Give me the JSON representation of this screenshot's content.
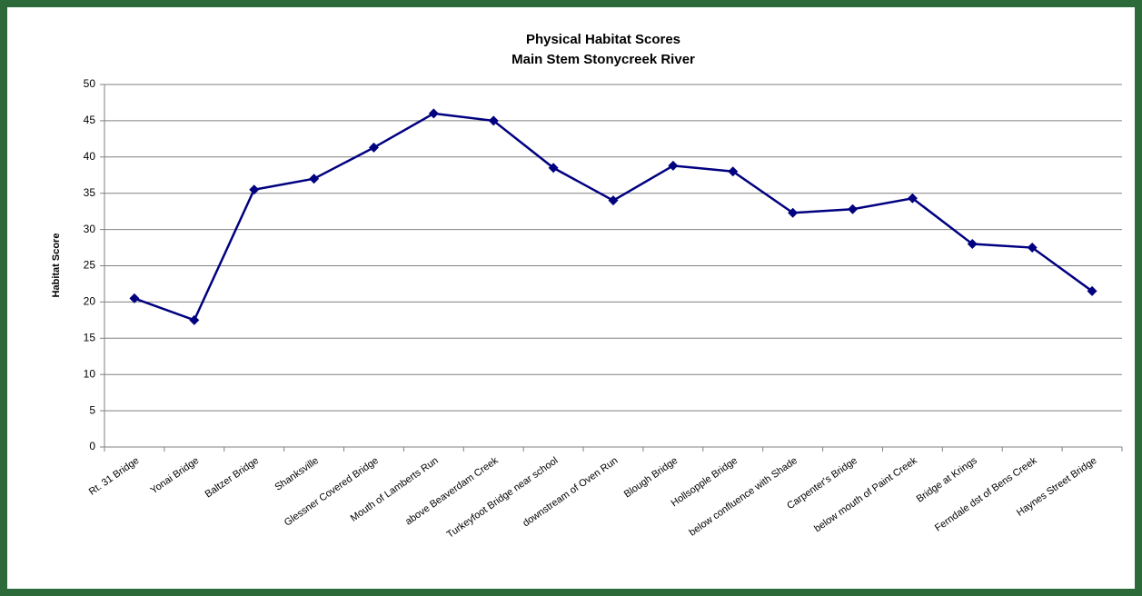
{
  "chart_data": {
    "type": "line",
    "title": [
      "Physical Habitat Scores",
      "Main Stem Stonycreek River"
    ],
    "y_label": "Habitat Score",
    "categories": [
      "Rt. 31 Bridge",
      "Yonai Bridge",
      "Baltzer Bridge",
      "Shanksville",
      "Glessner Covered Bridge",
      "Mouth of Lamberts Run",
      "above Beaverdam Creek",
      "Turkeyfoot Bridge near school",
      "downstream of Oven Run",
      "Blough Bridge",
      "Hollsopple Bridge",
      "below confluence with Shade",
      "Carpenter's Bridge",
      "below mouth of Paint Creek",
      "Bridge at Krings",
      "Ferndale dst of Bens Creek",
      "Haynes Street Bridge"
    ],
    "values": [
      20.5,
      17.5,
      35.5,
      37,
      41.3,
      46,
      45,
      38.5,
      34,
      38.8,
      38,
      32.3,
      32.8,
      34.3,
      28,
      27.5,
      21.5
    ],
    "color": "#000080",
    "ylim": [
      0,
      50
    ],
    "yticks": [
      0,
      5,
      10,
      15,
      20,
      25,
      30,
      35,
      40,
      45,
      50
    ],
    "grid": true
  }
}
